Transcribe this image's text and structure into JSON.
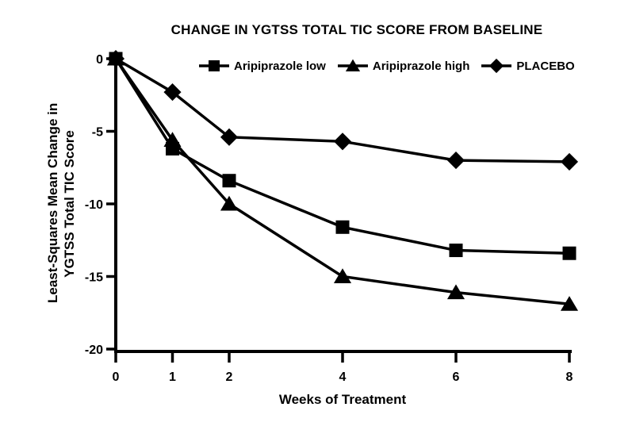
{
  "figure": {
    "ylabel_line1": "Least-Squares Mean Change in",
    "ylabel_line2": "YGTSS Total TIC Score"
  },
  "colors": {
    "foreground": "#000000",
    "background": "#ffffff"
  },
  "chart_data": {
    "type": "line",
    "title": "CHANGE IN YGTSS TOTAL TIC SCORE FROM BASELINE",
    "xlabel": "Weeks of Treatment",
    "ylabel": "Least-Squares Mean Change in YGTSS Total TIC Score",
    "x": [
      0,
      1,
      2,
      4,
      6,
      8
    ],
    "xticks": [
      "0",
      "1",
      "2",
      "4",
      "6",
      "8"
    ],
    "yticks": [
      0,
      -5,
      -10,
      -15,
      -20
    ],
    "ytick_labels": [
      "0",
      "-5",
      "-10",
      "-15",
      "-20"
    ],
    "xlim": [
      0,
      8
    ],
    "ylim": [
      -20,
      0
    ],
    "grid": false,
    "legend_position": "top",
    "series": [
      {
        "name": "Aripiprazole low",
        "marker": "square",
        "color": "#000000",
        "values": [
          0,
          -6.2,
          -8.4,
          -11.6,
          -13.2,
          -13.4
        ]
      },
      {
        "name": "Aripiprazole high",
        "marker": "triangle",
        "color": "#000000",
        "values": [
          0,
          -5.6,
          -10.0,
          -15.0,
          -16.1,
          -16.9
        ]
      },
      {
        "name": "PLACEBO",
        "marker": "diamond",
        "color": "#000000",
        "values": [
          0,
          -2.3,
          -5.4,
          -5.7,
          -7.0,
          -7.1
        ]
      }
    ]
  }
}
